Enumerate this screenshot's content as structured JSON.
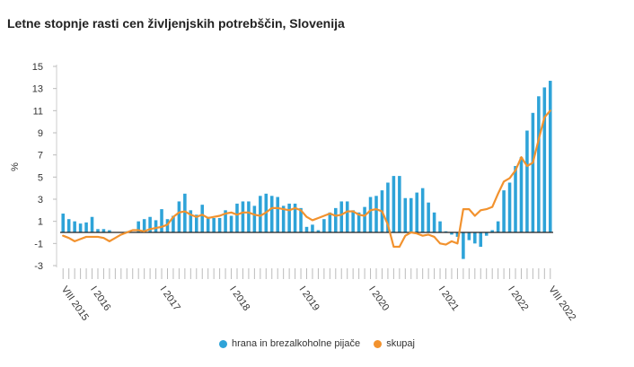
{
  "title": "Letne stopnje rasti cen življenjskih potrebščin, Slovenija",
  "chart_data": {
    "type": "bar",
    "ylabel": "%",
    "ylim": [
      -3,
      15
    ],
    "yticks": [
      15,
      13,
      11,
      9,
      7,
      5,
      3,
      1,
      -1,
      -3
    ],
    "x_start": "VIII 2015",
    "x_end": "VIII 2022",
    "x_tick_labels": [
      {
        "label": "VIII 2015",
        "index": 0
      },
      {
        "label": "I 2016",
        "index": 5
      },
      {
        "label": "I 2017",
        "index": 17
      },
      {
        "label": "I 2018",
        "index": 29
      },
      {
        "label": "I 2019",
        "index": 41
      },
      {
        "label": "I 2020",
        "index": 53
      },
      {
        "label": "I 2021",
        "index": 65
      },
      {
        "label": "I 2022",
        "index": 77
      },
      {
        "label": "VIII 2022",
        "index": 84
      }
    ],
    "grid": false,
    "legend_position": "bottom",
    "series": [
      {
        "name": "hrana in brezalkoholne pijače",
        "kind": "bar",
        "color": "#2ea3d8",
        "values": [
          1.7,
          1.2,
          1.0,
          0.8,
          0.9,
          1.4,
          0.3,
          0.3,
          0.2,
          0.0,
          0.0,
          0.1,
          0.0,
          1.0,
          1.2,
          1.4,
          1.1,
          2.1,
          1.2,
          1.5,
          2.8,
          3.5,
          2.0,
          1.6,
          2.5,
          1.4,
          1.3,
          1.3,
          2.0,
          1.5,
          2.6,
          2.8,
          2.8,
          2.4,
          3.3,
          3.5,
          3.3,
          3.2,
          2.4,
          2.6,
          2.6,
          2.2,
          0.5,
          0.7,
          0.2,
          1.2,
          1.8,
          2.2,
          2.8,
          2.8,
          2.0,
          1.8,
          2.3,
          3.2,
          3.3,
          3.8,
          4.5,
          5.1,
          5.1,
          3.1,
          3.1,
          3.6,
          4.0,
          2.7,
          1.8,
          1.0,
          0.1,
          -0.2,
          -0.4,
          -2.4,
          -0.7,
          -1.0,
          -1.3,
          -0.3,
          0.2,
          1.0,
          3.8,
          4.5,
          6.0,
          6.8,
          9.2,
          10.8,
          12.3,
          13.1,
          13.7
        ]
      },
      {
        "name": "skupaj",
        "kind": "line",
        "color": "#f2922e",
        "values": [
          -0.3,
          -0.5,
          -0.8,
          -0.6,
          -0.4,
          -0.4,
          -0.4,
          -0.5,
          -0.8,
          -0.5,
          -0.2,
          0.0,
          0.2,
          0.2,
          0.1,
          0.3,
          0.4,
          0.5,
          0.7,
          1.4,
          1.8,
          1.9,
          1.6,
          1.4,
          1.6,
          1.3,
          1.4,
          1.5,
          1.7,
          1.8,
          1.6,
          1.8,
          1.8,
          1.6,
          1.5,
          1.8,
          2.2,
          2.2,
          2.1,
          2.0,
          2.2,
          2.0,
          1.4,
          1.1,
          1.3,
          1.5,
          1.7,
          1.5,
          1.6,
          1.9,
          1.9,
          1.6,
          1.5,
          2.0,
          2.1,
          1.9,
          0.7,
          -1.3,
          -1.3,
          -0.3,
          0.0,
          -0.1,
          -0.3,
          -0.2,
          -0.4,
          -1.0,
          -1.1,
          -0.8,
          -1.0,
          2.1,
          2.1,
          1.5,
          2.0,
          2.1,
          2.3,
          3.5,
          4.6,
          4.9,
          5.6,
          6.8,
          6.0,
          6.3,
          8.4,
          10.4,
          11.0
        ]
      }
    ]
  }
}
